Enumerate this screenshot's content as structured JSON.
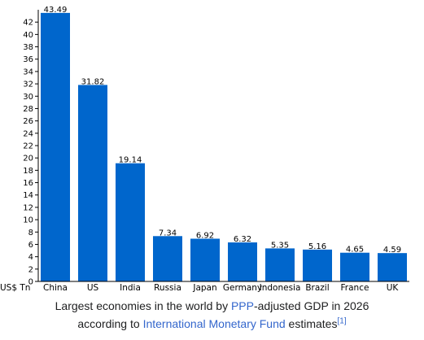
{
  "chart_data": {
    "type": "bar",
    "categories": [
      "China",
      "US",
      "India",
      "Russia",
      "Japan",
      "Germany",
      "Indonesia",
      "Brazil",
      "France",
      "UK"
    ],
    "values": [
      43.49,
      31.82,
      19.14,
      7.34,
      6.92,
      6.32,
      5.35,
      5.16,
      4.65,
      4.59
    ],
    "value_labels": [
      "43.49",
      "31.82",
      "19.14",
      "7.34",
      "6.92",
      "6.32",
      "5.35",
      "5.16",
      "4.65",
      "4.59"
    ],
    "ylabel": "US$ Tn",
    "ylim": [
      0,
      44
    ],
    "yticks": [
      0,
      2,
      4,
      6,
      8,
      10,
      12,
      14,
      16,
      18,
      20,
      22,
      24,
      26,
      28,
      30,
      32,
      34,
      36,
      38,
      40,
      42
    ],
    "bar_color": "#0066cc",
    "grid": false
  },
  "caption": {
    "line1_prefix": "Largest economies in the world by ",
    "line1_link": "PPP",
    "line1_suffix": "-adjusted GDP in 2026",
    "line2_prefix": "according to ",
    "line2_link": "International Monetary Fund",
    "line2_suffix": " estimates",
    "reference": "[1]"
  },
  "colors": {
    "link": "#3366cc",
    "bar": "#0066cc"
  }
}
